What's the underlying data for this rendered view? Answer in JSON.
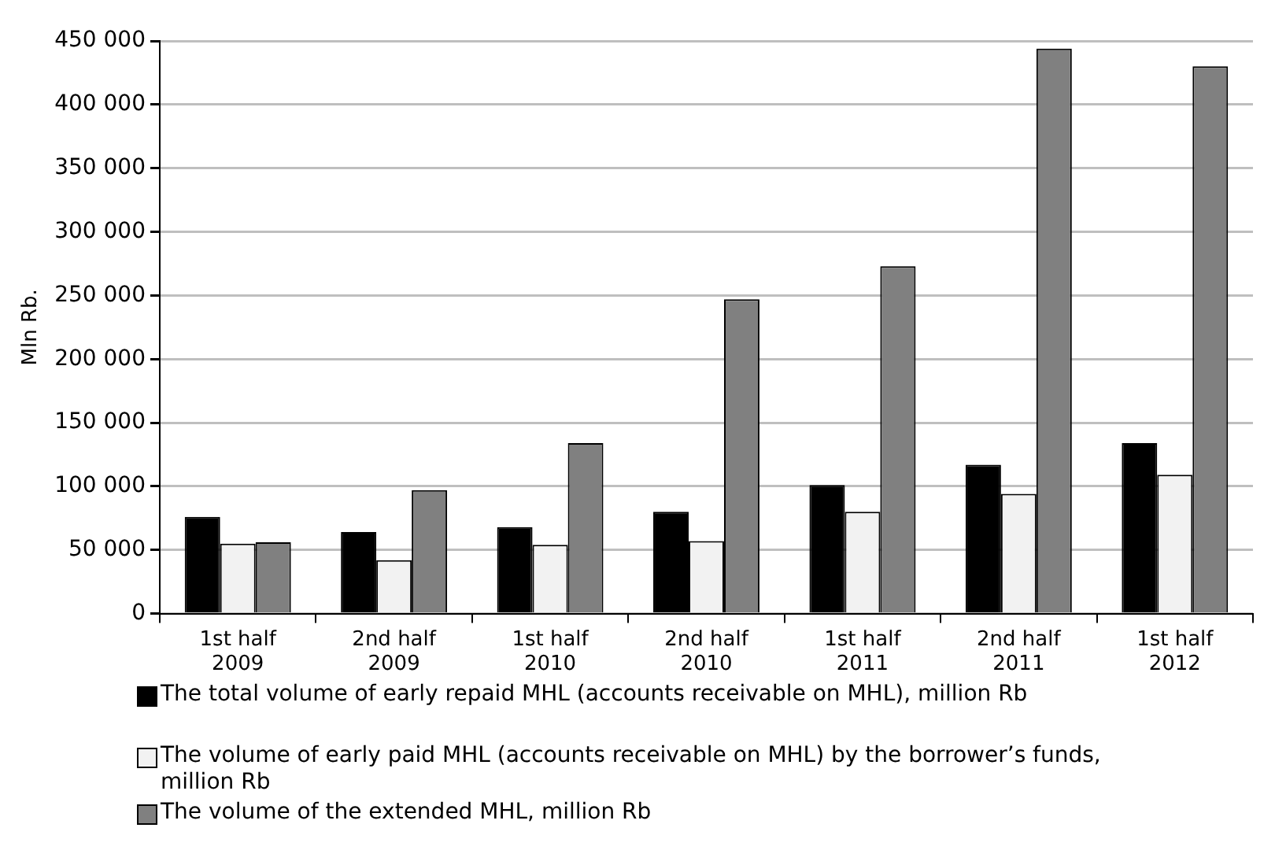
{
  "chart_data": {
    "type": "bar",
    "ylabel": "Mln Rb.",
    "categories": [
      "1st half 2009",
      "2nd half 2009",
      "1st half 2010",
      "2nd half 2010",
      "1st half 2011",
      "2nd half 2011",
      "1st half 2012"
    ],
    "series": [
      {
        "name": "The total volume of early repaid MHL (accounts receivable on MHL), million Rb",
        "color": "#000000",
        "values": [
          76000,
          64000,
          68000,
          80000,
          101000,
          117000,
          134000
        ]
      },
      {
        "name": "The volume of early paid MHL (accounts receivable on MHL) by the borrower’s funds, million Rb",
        "color": "#f2f2f2",
        "values": [
          55000,
          42000,
          54000,
          57000,
          80000,
          94000,
          109000
        ]
      },
      {
        "name": "The volume of the extended MHL, million Rb",
        "color": "#808080",
        "values": [
          56000,
          97000,
          134000,
          247000,
          273000,
          444000,
          430000
        ]
      }
    ],
    "ylim": [
      0,
      450000
    ],
    "yticks": [
      0,
      {
        "value": 50000,
        "label": "50 000"
      },
      {
        "value": 100000,
        "label": "100 000"
      },
      {
        "value": 150000,
        "label": "150 000"
      },
      {
        "value": 200000,
        "label": "200 000"
      },
      {
        "value": 250000,
        "label": "250 000"
      },
      {
        "value": 300000,
        "label": "300 000"
      },
      {
        "value": 350000,
        "label": "350 000"
      },
      {
        "value": 400000,
        "label": "400 000"
      },
      {
        "value": 450000,
        "label": "450 000"
      }
    ],
    "grid": "y",
    "legend": "bottom"
  }
}
